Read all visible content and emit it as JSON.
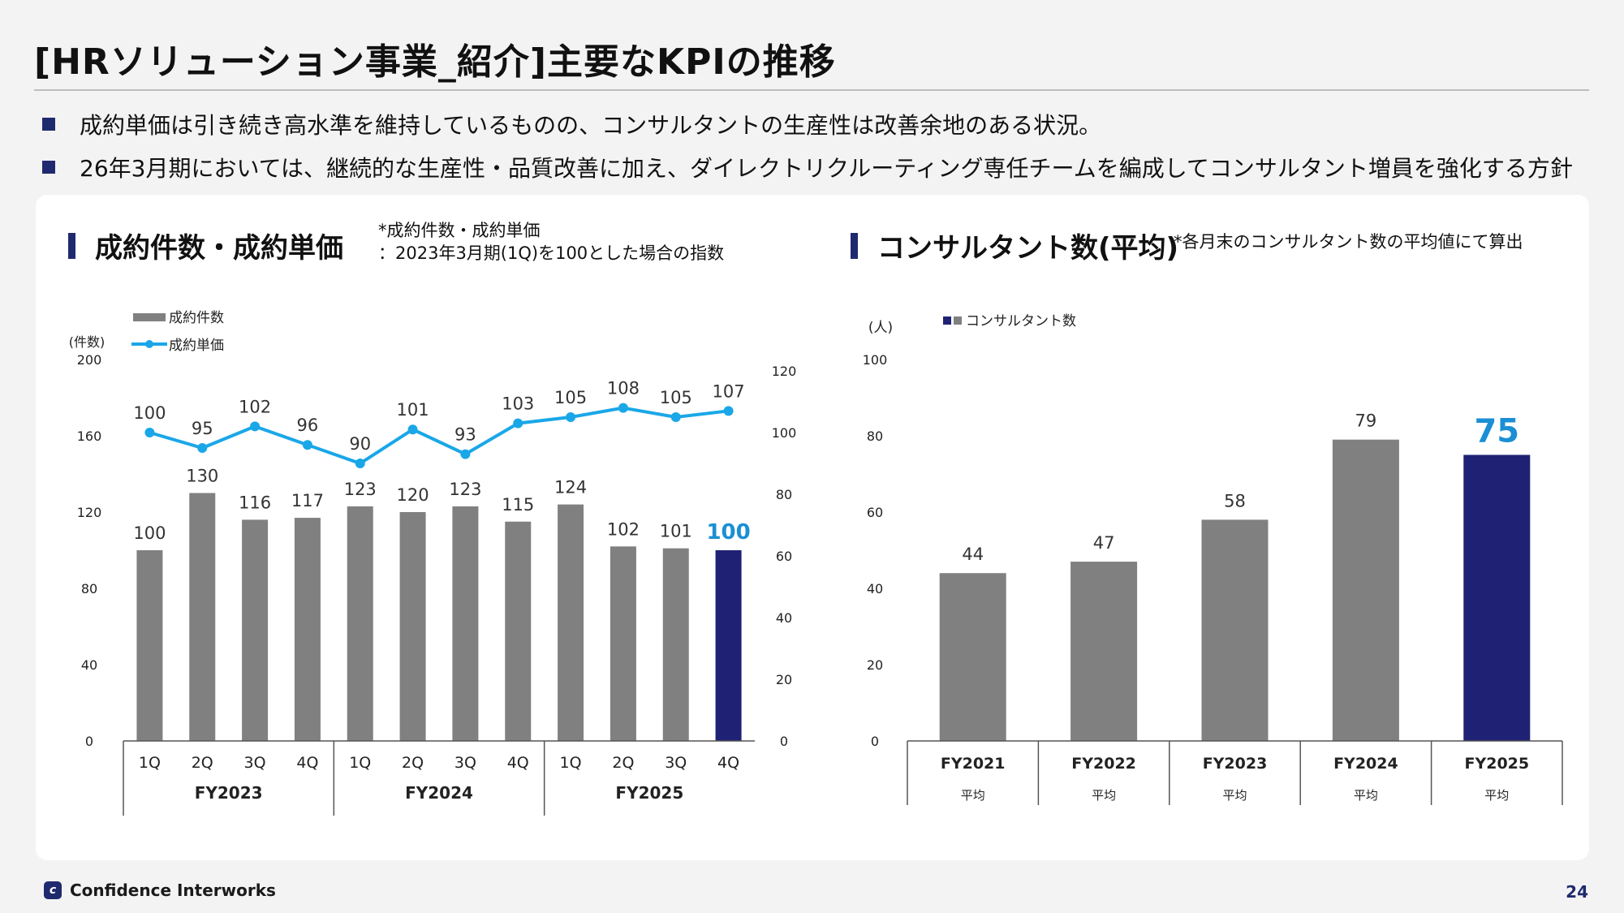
{
  "page": {
    "title": "[HRソリューション事業_紹介]主要なKPIの推移",
    "bullets": [
      "成約単価は引き続き高水準を維持しているものの、コンサルタントの生産性は改善余地のある状況。",
      "26年3月期においては、継続的な生産性・品質改善に加え、ダイレクトリクルーティング専任チームを編成してコンサルタント増員を強化する方針"
    ],
    "footer_company": "Confidence Interworks",
    "page_number": "24"
  },
  "left_section": {
    "heading": "成約件数・成約単価",
    "note_line1": "*成約件数・成約単価",
    "note_line2": "：2023年3月期(1Q)を100とした場合の指数"
  },
  "right_section": {
    "heading": "コンサルタント数(平均)",
    "note": "*各月末のコンサルタント数の平均値にて算出"
  },
  "colors": {
    "bar_gray": "#808080",
    "highlight_navy": "#1f2274",
    "line_cyan": "#1aa7e8",
    "highlight_label": "#1b8fd4",
    "heading_bar": "#1f2a6e"
  },
  "chart_data": [
    {
      "type": "bar",
      "secondary_type": "line",
      "y_left_label": "(件数)",
      "y_left_ticks": [
        "0",
        "40",
        "80",
        "120",
        "160",
        "200"
      ],
      "ylim_left": [
        0,
        200
      ],
      "y_right_ticks": [
        "0",
        "20",
        "40",
        "60",
        "80",
        "100",
        "120"
      ],
      "ylim_right": [
        0,
        120
      ],
      "legend": [
        "成約件数",
        "成約単価"
      ],
      "legend_position": "top-left",
      "categories": [
        "1Q",
        "2Q",
        "3Q",
        "4Q",
        "1Q",
        "2Q",
        "3Q",
        "4Q",
        "1Q",
        "2Q",
        "3Q",
        "4Q"
      ],
      "groups": [
        "FY2023",
        "FY2024",
        "FY2025"
      ],
      "series": [
        {
          "name": "成約件数",
          "axis": "left",
          "values": [
            100,
            130,
            116,
            117,
            123,
            120,
            123,
            115,
            124,
            102,
            101,
            100
          ]
        },
        {
          "name": "成約単価",
          "axis": "right",
          "values": [
            100,
            95,
            102,
            96,
            90,
            101,
            93,
            103,
            105,
            108,
            105,
            107
          ]
        }
      ],
      "highlight_index": 11
    },
    {
      "type": "bar",
      "y_label": "(人)",
      "y_ticks": [
        "0",
        "20",
        "40",
        "60",
        "80",
        "100"
      ],
      "ylim": [
        0,
        100
      ],
      "legend": [
        "コンサルタント数"
      ],
      "legend_position": "top-left",
      "categories": [
        "FY2021",
        "FY2022",
        "FY2023",
        "FY2024",
        "FY2025"
      ],
      "sub_label": "平均",
      "series": [
        {
          "name": "コンサルタント数",
          "values": [
            44,
            47,
            58,
            79,
            75
          ]
        }
      ],
      "highlight_index": 4
    }
  ]
}
